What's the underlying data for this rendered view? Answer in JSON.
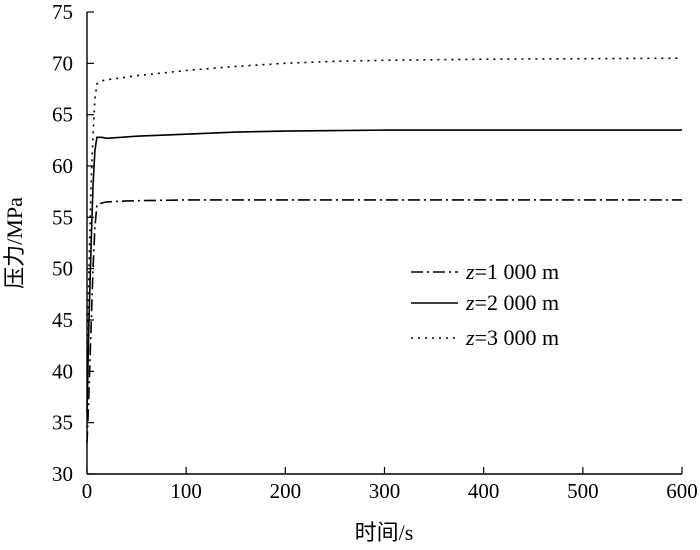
{
  "chart_data": {
    "type": "line",
    "title": "",
    "xlabel": "时间/s",
    "ylabel": "压力/MPa",
    "xlim": [
      0,
      600
    ],
    "ylim": [
      30,
      75
    ],
    "xticks": [
      0,
      100,
      200,
      300,
      400,
      500,
      600
    ],
    "yticks": [
      30,
      35,
      40,
      45,
      50,
      55,
      60,
      65,
      70,
      75
    ],
    "grid": false,
    "legend_position": "center-right",
    "series": [
      {
        "name": "z=1 000 m",
        "name_italic": "z",
        "name_rest": "=1 000 m",
        "style": "dash-dot",
        "x": [
          0,
          2,
          4,
          6,
          8,
          10,
          15,
          20,
          40,
          100,
          200,
          300,
          400,
          500,
          600
        ],
        "y": [
          33,
          38,
          44,
          50,
          54,
          56.2,
          56.4,
          56.5,
          56.6,
          56.7,
          56.7,
          56.7,
          56.7,
          56.7,
          56.7
        ]
      },
      {
        "name": "z=2 000 m",
        "name_italic": "z",
        "name_rest": "=2 000 m",
        "style": "solid",
        "x": [
          0,
          2,
          4,
          6,
          8,
          10,
          15,
          20,
          50,
          100,
          150,
          200,
          250,
          300,
          400,
          500,
          600
        ],
        "y": [
          36,
          45,
          52,
          58,
          61.5,
          62.8,
          62.8,
          62.7,
          62.9,
          63.1,
          63.3,
          63.4,
          63.45,
          63.5,
          63.5,
          63.5,
          63.5
        ]
      },
      {
        "name": "z=3 000 m",
        "name_italic": "z",
        "name_rest": "=3 000 m",
        "style": "dotted",
        "x": [
          0,
          2,
          4,
          6,
          8,
          10,
          15,
          20,
          50,
          100,
          150,
          200,
          250,
          300,
          400,
          500,
          600
        ],
        "y": [
          40,
          50,
          58,
          63,
          66.5,
          68.0,
          68.3,
          68.4,
          68.8,
          69.3,
          69.7,
          70.0,
          70.2,
          70.3,
          70.4,
          70.45,
          70.5
        ]
      }
    ]
  }
}
